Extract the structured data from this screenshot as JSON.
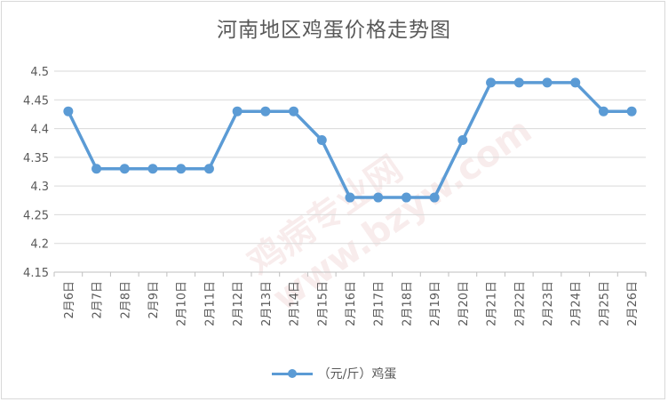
{
  "chart_data": {
    "type": "line",
    "title": "河南地区鸡蛋价格走势图",
    "categories": [
      "2月6日",
      "2月7日",
      "2月8日",
      "2月9日",
      "2月10日",
      "2月11日",
      "2月12日",
      "2月13日",
      "2月14日",
      "2月15日",
      "2月16日",
      "2月17日",
      "2月18日",
      "2月19日",
      "2月20日",
      "2月21日",
      "2月22日",
      "2月23日",
      "2月24日",
      "2月25日",
      "2月26日"
    ],
    "series": [
      {
        "name": "（元/斤）鸡蛋",
        "values": [
          4.43,
          4.33,
          4.33,
          4.33,
          4.33,
          4.33,
          4.43,
          4.43,
          4.43,
          4.38,
          4.28,
          4.28,
          4.28,
          4.28,
          4.38,
          4.48,
          4.48,
          4.48,
          4.48,
          4.43,
          4.43
        ],
        "color": "#5b9bd5"
      }
    ],
    "yticks": [
      "4.15",
      "4.2",
      "4.25",
      "4.3",
      "4.35",
      "4.4",
      "4.45",
      "4.5"
    ],
    "ylim": [
      4.15,
      4.5
    ],
    "grid": true,
    "legend_position": "bottom"
  },
  "watermark": "鸡病专业网 www.bzyw.com"
}
